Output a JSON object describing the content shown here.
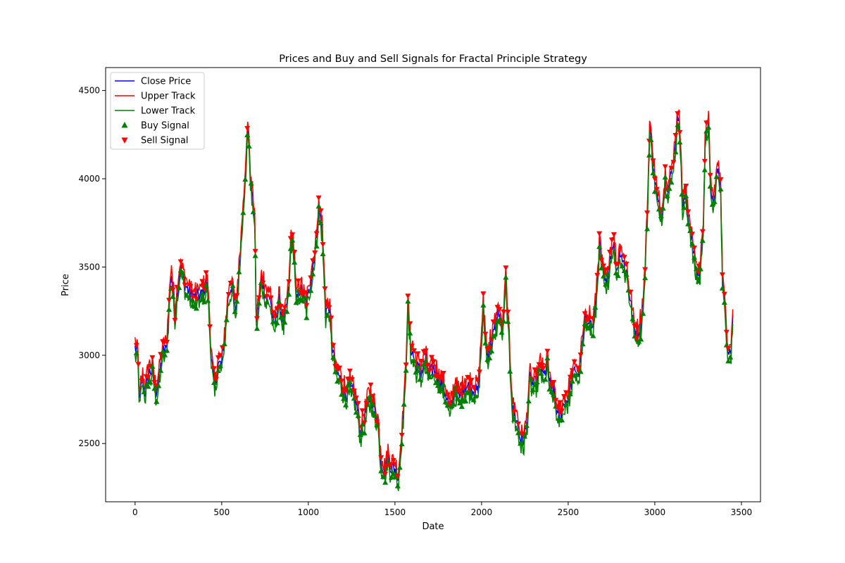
{
  "chart_data": {
    "type": "line",
    "title": "Prices and Buy and Sell Signals for Fractal Principle Strategy",
    "xlabel": "Date",
    "ylabel": "Price",
    "xlim": [
      -170,
      3610
    ],
    "ylim": [
      2170,
      4630
    ],
    "xticks": [
      0,
      500,
      1000,
      1500,
      2000,
      2500,
      3000,
      3500
    ],
    "yticks": [
      2500,
      3000,
      3500,
      4000,
      4500
    ],
    "legend_position": "upper-left",
    "grid": false,
    "keypoints": [
      [
        0,
        3040
      ],
      [
        15,
        3020
      ],
      [
        25,
        2730
      ],
      [
        40,
        2860
      ],
      [
        60,
        2790
      ],
      [
        80,
        2900
      ],
      [
        100,
        2920
      ],
      [
        120,
        2790
      ],
      [
        140,
        2880
      ],
      [
        160,
        3020
      ],
      [
        180,
        3030
      ],
      [
        200,
        3350
      ],
      [
        210,
        3460
      ],
      [
        230,
        3230
      ],
      [
        260,
        3500
      ],
      [
        290,
        3400
      ],
      [
        320,
        3340
      ],
      [
        350,
        3330
      ],
      [
        380,
        3340
      ],
      [
        410,
        3400
      ],
      [
        420,
        3380
      ],
      [
        440,
        2990
      ],
      [
        460,
        2800
      ],
      [
        480,
        2950
      ],
      [
        500,
        2950
      ],
      [
        520,
        3130
      ],
      [
        540,
        3350
      ],
      [
        560,
        3400
      ],
      [
        580,
        3230
      ],
      [
        600,
        3470
      ],
      [
        620,
        3800
      ],
      [
        640,
        4050
      ],
      [
        650,
        4330
      ],
      [
        670,
        3950
      ],
      [
        690,
        3780
      ],
      [
        700,
        3170
      ],
      [
        730,
        3440
      ],
      [
        760,
        3320
      ],
      [
        780,
        3340
      ],
      [
        800,
        3150
      ],
      [
        830,
        3310
      ],
      [
        860,
        3170
      ],
      [
        890,
        3400
      ],
      [
        900,
        3680
      ],
      [
        920,
        3560
      ],
      [
        930,
        3290
      ],
      [
        950,
        3380
      ],
      [
        970,
        3340
      ],
      [
        990,
        3280
      ],
      [
        1010,
        3400
      ],
      [
        1040,
        3600
      ],
      [
        1060,
        3830
      ],
      [
        1080,
        3720
      ],
      [
        1100,
        3250
      ],
      [
        1120,
        3280
      ],
      [
        1140,
        3040
      ],
      [
        1160,
        2900
      ],
      [
        1180,
        2880
      ],
      [
        1200,
        2810
      ],
      [
        1220,
        2780
      ],
      [
        1240,
        2820
      ],
      [
        1260,
        2780
      ],
      [
        1280,
        2720
      ],
      [
        1300,
        2560
      ],
      [
        1320,
        2620
      ],
      [
        1340,
        2720
      ],
      [
        1360,
        2770
      ],
      [
        1380,
        2700
      ],
      [
        1400,
        2640
      ],
      [
        1420,
        2400
      ],
      [
        1440,
        2340
      ],
      [
        1460,
        2420
      ],
      [
        1480,
        2360
      ],
      [
        1500,
        2360
      ],
      [
        1520,
        2310
      ],
      [
        1540,
        2560
      ],
      [
        1560,
        2850
      ],
      [
        1575,
        3280
      ],
      [
        1590,
        3050
      ],
      [
        1620,
        2950
      ],
      [
        1650,
        2900
      ],
      [
        1680,
        2980
      ],
      [
        1700,
        2880
      ],
      [
        1720,
        2930
      ],
      [
        1750,
        2880
      ],
      [
        1780,
        2820
      ],
      [
        1800,
        2760
      ],
      [
        1820,
        2680
      ],
      [
        1850,
        2830
      ],
      [
        1870,
        2750
      ],
      [
        1900,
        2830
      ],
      [
        1930,
        2820
      ],
      [
        1960,
        2800
      ],
      [
        1980,
        2790
      ],
      [
        2000,
        3100
      ],
      [
        2010,
        3270
      ],
      [
        2030,
        3000
      ],
      [
        2060,
        3080
      ],
      [
        2080,
        3170
      ],
      [
        2100,
        3250
      ],
      [
        2120,
        3130
      ],
      [
        2140,
        3420
      ],
      [
        2160,
        3050
      ],
      [
        2180,
        2690
      ],
      [
        2200,
        2640
      ],
      [
        2220,
        2540
      ],
      [
        2240,
        2510
      ],
      [
        2260,
        2600
      ],
      [
        2280,
        2870
      ],
      [
        2300,
        2830
      ],
      [
        2320,
        2850
      ],
      [
        2340,
        2940
      ],
      [
        2360,
        2880
      ],
      [
        2380,
        2960
      ],
      [
        2400,
        2800
      ],
      [
        2420,
        2780
      ],
      [
        2440,
        2640
      ],
      [
        2460,
        2680
      ],
      [
        2480,
        2740
      ],
      [
        2500,
        2760
      ],
      [
        2520,
        2840
      ],
      [
        2540,
        2930
      ],
      [
        2560,
        2880
      ],
      [
        2580,
        3050
      ],
      [
        2600,
        3200
      ],
      [
        2620,
        3220
      ],
      [
        2640,
        3150
      ],
      [
        2660,
        3300
      ],
      [
        2680,
        3620
      ],
      [
        2700,
        3480
      ],
      [
        2720,
        3380
      ],
      [
        2740,
        3540
      ],
      [
        2760,
        3650
      ],
      [
        2780,
        3480
      ],
      [
        2800,
        3600
      ],
      [
        2820,
        3520
      ],
      [
        2840,
        3460
      ],
      [
        2860,
        3300
      ],
      [
        2880,
        3160
      ],
      [
        2900,
        3120
      ],
      [
        2920,
        3180
      ],
      [
        2940,
        3400
      ],
      [
        2960,
        3900
      ],
      [
        2970,
        4300
      ],
      [
        2990,
        4100
      ],
      [
        3000,
        4000
      ],
      [
        3020,
        3850
      ],
      [
        3040,
        3800
      ],
      [
        3060,
        4000
      ],
      [
        3080,
        3950
      ],
      [
        3100,
        4050
      ],
      [
        3120,
        4220
      ],
      [
        3140,
        4380
      ],
      [
        3160,
        3850
      ],
      [
        3180,
        3900
      ],
      [
        3200,
        3750
      ],
      [
        3220,
        3600
      ],
      [
        3240,
        3480
      ],
      [
        3260,
        3450
      ],
      [
        3280,
        3760
      ],
      [
        3290,
        4180
      ],
      [
        3310,
        4360
      ],
      [
        3320,
        3950
      ],
      [
        3340,
        3850
      ],
      [
        3360,
        4050
      ],
      [
        3380,
        3980
      ],
      [
        3390,
        3450
      ],
      [
        3410,
        3200
      ],
      [
        3420,
        3050
      ],
      [
        3440,
        3020
      ],
      [
        3450,
        3230
      ]
    ],
    "series": [
      {
        "name": "Close Price",
        "color": "#0000ff",
        "style": "line"
      },
      {
        "name": "Upper Track",
        "color": "#ff0000",
        "style": "line"
      },
      {
        "name": "Lower Track",
        "color": "#008000",
        "style": "line"
      },
      {
        "name": "Buy Signal",
        "color": "#008000",
        "style": "marker-triangle-up"
      },
      {
        "name": "Sell Signal",
        "color": "#ff0000",
        "style": "marker-triangle-down"
      }
    ]
  }
}
